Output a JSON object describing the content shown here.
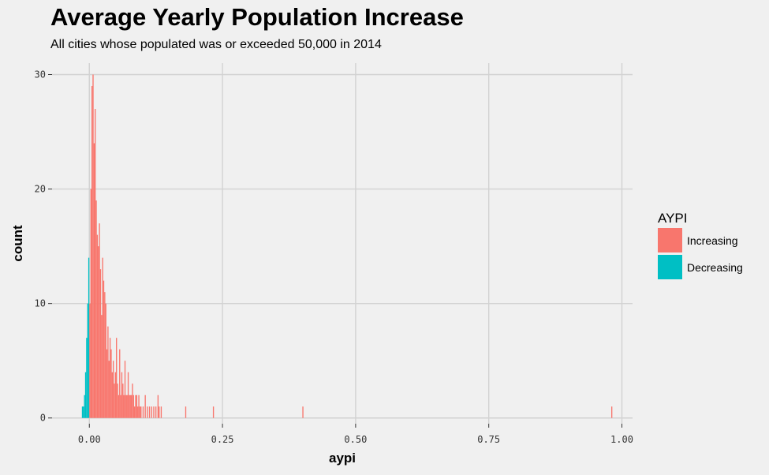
{
  "chart_data": {
    "type": "bar",
    "title": "Average Yearly Population Increase",
    "subtitle": "All cities whose populated was or exceeded 50,000 in 2014",
    "xlabel": "aypi",
    "ylabel": "count",
    "xlim": [
      -0.07,
      1.02
    ],
    "ylim": [
      -0.5,
      31
    ],
    "x_ticks": [
      0.0,
      0.25,
      0.5,
      0.75,
      1.0
    ],
    "x_tick_labels": [
      "0.00",
      "0.25",
      "0.50",
      "0.75",
      "1.00"
    ],
    "y_ticks": [
      0,
      10,
      20,
      30
    ],
    "y_tick_labels": [
      "0",
      "10",
      "20",
      "30"
    ],
    "grid": true,
    "bin_width": 0.002,
    "legend": {
      "title": "AYPI",
      "placement": "right",
      "entries": [
        "Increasing",
        "Decreasing"
      ]
    },
    "series": [
      {
        "name": "Decreasing",
        "color": "#00bfc4",
        "x": [
          -0.013,
          -0.011,
          -0.009,
          -0.007,
          -0.005,
          -0.003,
          -0.001
        ],
        "values": [
          1,
          1,
          2,
          4,
          7,
          10,
          14
        ]
      },
      {
        "name": "Increasing",
        "color": "#f8766d",
        "x": [
          0.001,
          0.003,
          0.005,
          0.007,
          0.009,
          0.011,
          0.013,
          0.015,
          0.017,
          0.019,
          0.021,
          0.023,
          0.025,
          0.027,
          0.029,
          0.031,
          0.033,
          0.035,
          0.037,
          0.039,
          0.041,
          0.043,
          0.045,
          0.047,
          0.049,
          0.051,
          0.053,
          0.055,
          0.057,
          0.059,
          0.061,
          0.063,
          0.065,
          0.067,
          0.069,
          0.071,
          0.073,
          0.075,
          0.077,
          0.079,
          0.081,
          0.083,
          0.085,
          0.087,
          0.089,
          0.091,
          0.093,
          0.095,
          0.097,
          0.101,
          0.105,
          0.109,
          0.113,
          0.117,
          0.121,
          0.125,
          0.129,
          0.131,
          0.135,
          0.181,
          0.233,
          0.401,
          0.981
        ],
        "values": [
          10,
          20,
          29,
          30,
          24,
          27,
          19,
          16,
          15,
          17,
          13,
          9,
          14,
          12,
          11,
          10,
          6,
          8,
          5,
          7,
          6,
          4,
          5,
          3,
          4,
          7,
          3,
          2,
          6,
          2,
          4,
          3,
          2,
          5,
          2,
          2,
          4,
          2,
          2,
          2,
          3,
          2,
          1,
          2,
          2,
          1,
          2,
          1,
          1,
          1,
          2,
          1,
          1,
          1,
          1,
          1,
          2,
          1,
          1,
          1,
          1,
          1,
          1
        ]
      }
    ]
  }
}
